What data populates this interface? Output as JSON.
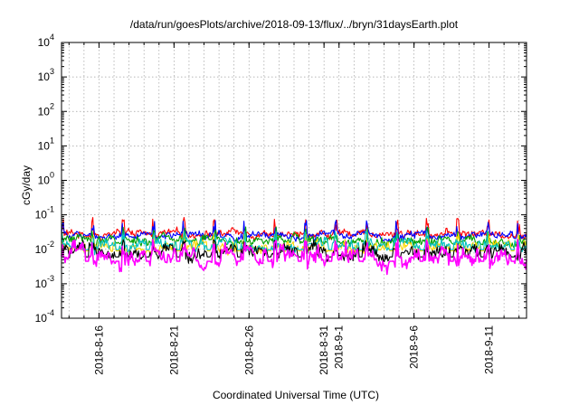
{
  "chart_data": {
    "type": "line",
    "title": "/data/run/goesPlots/archive/2018-09-13/flux/../bryn/31daysEarth.plot",
    "xlabel": "Coordinated Universal Time (UTC)",
    "ylabel": "cGy/day",
    "yscale": "log",
    "ylim": [
      0.0001,
      10000
    ],
    "xlim": [
      "2018-08-13T12:00",
      "2018-09-13T12:00"
    ],
    "grid": true,
    "legend": "none",
    "y_ticks": [
      {
        "base": "10",
        "exp": "-4"
      },
      {
        "base": "10",
        "exp": "-3"
      },
      {
        "base": "10",
        "exp": "-2"
      },
      {
        "base": "10",
        "exp": "-1"
      },
      {
        "base": "10",
        "exp": "0"
      },
      {
        "base": "10",
        "exp": "1"
      },
      {
        "base": "10",
        "exp": "2"
      },
      {
        "base": "10",
        "exp": "3"
      },
      {
        "base": "10",
        "exp": "4"
      }
    ],
    "x_ticks": [
      {
        "label": "2018-8-16",
        "date": "2018-08-16"
      },
      {
        "label": "2018-8-21",
        "date": "2018-08-21"
      },
      {
        "label": "2018-8-26",
        "date": "2018-08-26"
      },
      {
        "label": "2018-8-31",
        "date": "2018-08-31"
      },
      {
        "label": "2018-9-1",
        "date": "2018-09-01"
      },
      {
        "label": "2018-9-6",
        "date": "2018-09-06"
      },
      {
        "label": "2018-9-11",
        "date": "2018-09-11"
      }
    ],
    "minor_x_gridlines_per_major": 5,
    "series": [
      {
        "color": "#ff0000",
        "baseline": 0.028,
        "spike_max": 0.085,
        "noise": 0.12
      },
      {
        "color": "#0000ff",
        "baseline": 0.025,
        "spike_max": 0.07,
        "noise": 0.12
      },
      {
        "color": "#00a000",
        "baseline": 0.018,
        "spike_max": 0.045,
        "noise": 0.15
      },
      {
        "color": "#ffd700",
        "baseline": 0.012,
        "spike_max": 0.03,
        "noise": 0.18
      },
      {
        "color": "#00c0c0",
        "baseline": 0.013,
        "spike_max": 0.035,
        "noise": 0.18
      },
      {
        "color": "#000000",
        "baseline": 0.008,
        "spike_max": 0.02,
        "noise": 0.22
      },
      {
        "color": "#ff00ff",
        "baseline": 0.006,
        "spike_max": 0.02,
        "noise": 0.3
      }
    ]
  }
}
